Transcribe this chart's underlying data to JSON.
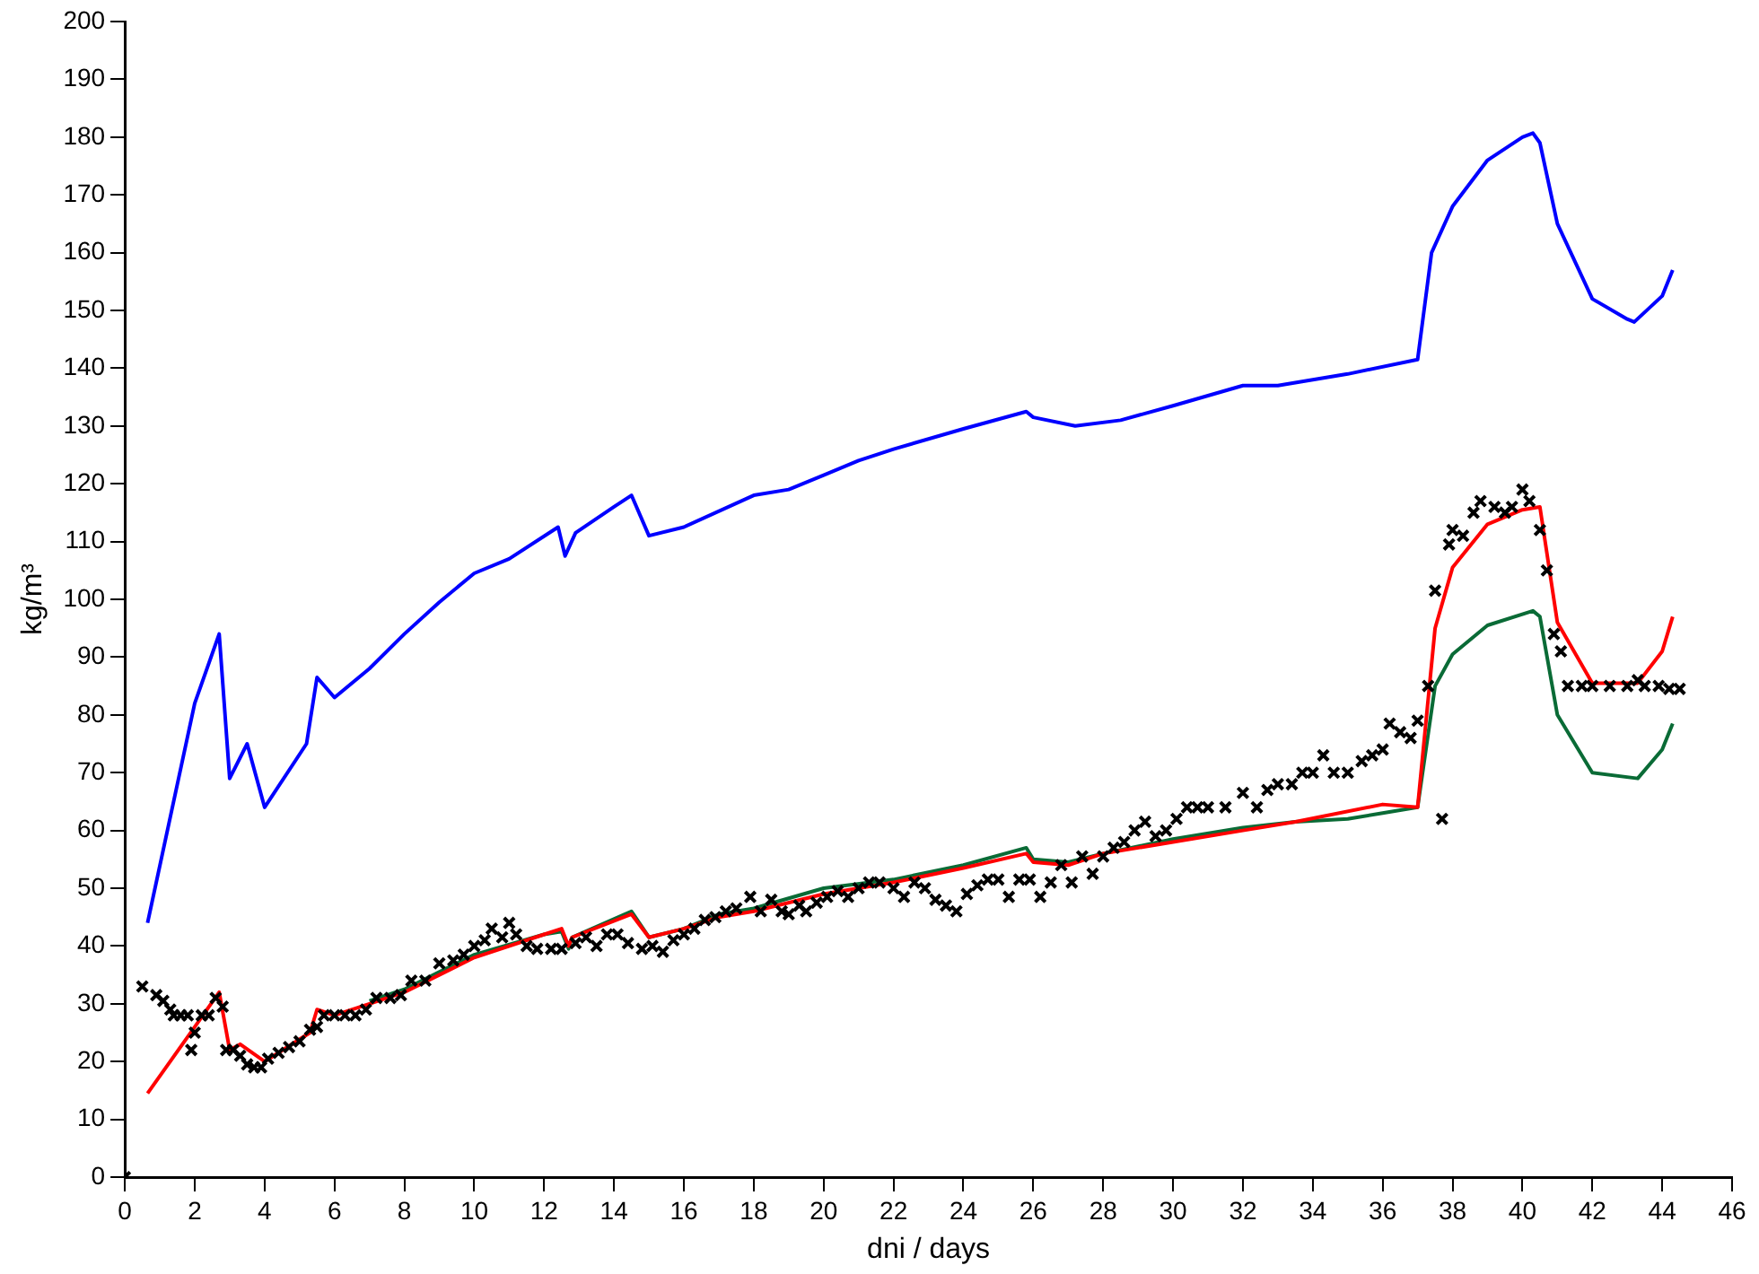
{
  "chart_data": {
    "type": "line",
    "xlabel": "dni / days",
    "ylabel": "kg/m³",
    "xlim": [
      0,
      46
    ],
    "xticks": [
      0,
      2,
      4,
      6,
      8,
      10,
      12,
      14,
      16,
      18,
      20,
      22,
      24,
      26,
      28,
      30,
      32,
      34,
      36,
      38,
      40,
      42,
      44,
      46
    ],
    "ylim": [
      0,
      200
    ],
    "yticks": [
      0,
      10,
      20,
      30,
      40,
      50,
      60,
      70,
      80,
      90,
      100,
      110,
      120,
      130,
      140,
      150,
      160,
      170,
      180,
      190,
      200
    ],
    "grid": false,
    "legend": false,
    "line_style": "solid",
    "series": [
      {
        "marker": "none",
        "color": "#0000ff",
        "x": [
          0.65,
          2.0,
          2.7,
          3.0,
          3.5,
          4.0,
          5.2,
          5.5,
          6.0,
          7.0,
          8.0,
          9.0,
          10.0,
          11.0,
          12.4,
          12.6,
          12.9,
          14.0,
          14.5,
          15.0,
          16.0,
          18.0,
          19.0,
          20.0,
          21.0,
          22.0,
          24.0,
          25.8,
          26.0,
          27.2,
          28.5,
          30.0,
          32.0,
          33.0,
          35.0,
          37.0,
          37.4,
          38.0,
          39.0,
          40.0,
          40.3,
          40.5,
          41.0,
          42.0,
          43.0,
          43.2,
          44.0,
          44.3
        ],
        "values": [
          44,
          82,
          94,
          69,
          75,
          64,
          75,
          86.5,
          83,
          88,
          94,
          99.5,
          104.5,
          107,
          112.5,
          107.5,
          111.5,
          116,
          118,
          111,
          112.5,
          118,
          119,
          121.5,
          124,
          126,
          129.5,
          132.5,
          131.5,
          130,
          131,
          133.5,
          137,
          137,
          139,
          141.5,
          160,
          168,
          176,
          180,
          180.7,
          179,
          165,
          152,
          148.5,
          148,
          152.5,
          157
        ]
      },
      {
        "marker": "none",
        "color": "#0a6b36",
        "x": [
          7.0,
          8.0,
          9.0,
          10.0,
          12.0,
          12.5,
          12.7,
          12.8,
          14.5,
          15.0,
          16.0,
          17.0,
          18.0,
          20.0,
          22.0,
          24.0,
          25.8,
          26.0,
          27.0,
          28.0,
          30.0,
          32.0,
          33.5,
          35.0,
          36.0,
          37.0,
          37.5,
          38.0,
          39.0,
          40.3,
          40.5,
          41.0,
          42.0,
          43.3,
          44.0,
          44.3
        ],
        "values": [
          30.5,
          32.5,
          35.5,
          38.5,
          42,
          42.5,
          39.5,
          41.5,
          46,
          41.5,
          43,
          45.5,
          46.5,
          50,
          51.5,
          54,
          57,
          55,
          54.5,
          56,
          58.5,
          60.5,
          61.5,
          62,
          63,
          64,
          85,
          90.5,
          95.5,
          98,
          97,
          80,
          70,
          69,
          74,
          78.5
        ]
      },
      {
        "marker": "none",
        "color": "#ff0000",
        "x": [
          0.65,
          2.0,
          2.7,
          3.0,
          3.3,
          4.0,
          5.3,
          5.5,
          6.0,
          7.0,
          8.0,
          9.0,
          10.0,
          12.0,
          12.5,
          12.7,
          12.8,
          14.5,
          15.0,
          16.0,
          17.0,
          18.0,
          20.0,
          22.0,
          24.0,
          25.8,
          26.0,
          27.0,
          28.0,
          30.0,
          32.0,
          33.5,
          36.0,
          37.0,
          37.5,
          38.0,
          39.0,
          40.0,
          40.5,
          41.0,
          42.0,
          43.3,
          44.0,
          44.3
        ],
        "values": [
          14.5,
          26,
          32,
          22,
          23,
          20,
          25,
          29,
          28,
          30,
          32,
          35,
          38,
          42,
          43,
          40,
          41.5,
          45.5,
          41.5,
          43,
          45,
          46,
          49,
          51,
          53.5,
          56,
          54.5,
          54,
          56,
          58,
          60,
          61.5,
          64.5,
          64,
          95,
          105.5,
          113,
          115.5,
          116,
          96,
          85.5,
          85.5,
          91,
          97
        ]
      },
      {
        "type": "scatter",
        "marker": "cross",
        "color": "#000000",
        "x": [
          0,
          0.5,
          0.9,
          1.1,
          1.3,
          1.4,
          1.6,
          1.8,
          1.9,
          2.0,
          2.2,
          2.4,
          2.6,
          2.8,
          2.9,
          3.1,
          3.3,
          3.5,
          3.7,
          3.9,
          4.1,
          4.4,
          4.7,
          5.0,
          5.3,
          5.5,
          5.7,
          6.0,
          6.3,
          6.6,
          6.9,
          7.2,
          7.6,
          7.9,
          8.2,
          8.6,
          9.0,
          9.4,
          9.7,
          10.0,
          10.3,
          10.5,
          10.8,
          11.0,
          11.2,
          11.5,
          11.8,
          12.2,
          12.5,
          12.9,
          13.2,
          13.5,
          13.8,
          14.1,
          14.4,
          14.8,
          15.1,
          15.4,
          15.7,
          16.0,
          16.3,
          16.6,
          16.9,
          17.2,
          17.5,
          17.9,
          18.2,
          18.5,
          18.8,
          19.0,
          19.3,
          19.5,
          19.8,
          20.1,
          20.4,
          20.7,
          21.0,
          21.3,
          21.6,
          22.0,
          22.3,
          22.6,
          22.9,
          23.2,
          23.5,
          23.8,
          24.1,
          24.4,
          24.7,
          25.0,
          25.3,
          25.6,
          25.9,
          26.2,
          26.5,
          26.8,
          27.1,
          27.4,
          27.7,
          28.0,
          28.3,
          28.6,
          28.9,
          29.2,
          29.5,
          29.8,
          30.1,
          30.4,
          30.7,
          31.0,
          31.5,
          32.0,
          32.4,
          32.7,
          33.0,
          33.4,
          33.7,
          34.0,
          34.3,
          34.6,
          35.0,
          35.4,
          35.7,
          36.0,
          36.2,
          36.5,
          36.8,
          37.0,
          37.3,
          37.5,
          37.7,
          37.9,
          38.0,
          38.3,
          38.6,
          38.8,
          39.2,
          39.5,
          39.7,
          40.0,
          40.2,
          40.5,
          40.7,
          40.9,
          41.1,
          41.3,
          41.7,
          42.0,
          42.5,
          43.0,
          43.3,
          43.5,
          43.9,
          44.2,
          44.5
        ],
        "values": [
          0,
          33,
          31.5,
          30.5,
          29,
          28,
          28,
          28,
          22,
          25,
          28,
          28,
          31,
          29.5,
          22,
          22,
          21,
          19.5,
          19,
          19,
          20.5,
          21.5,
          22.5,
          23.5,
          25.5,
          26,
          28,
          28,
          28,
          28,
          29,
          31,
          31,
          31.5,
          34,
          34,
          37,
          37.5,
          38.5,
          40,
          41,
          43,
          41.5,
          44,
          42,
          40,
          39.5,
          39.5,
          39.5,
          40.5,
          41.5,
          40,
          42,
          42,
          40.5,
          39.5,
          40,
          39,
          41,
          42,
          43,
          44.5,
          45,
          46,
          46.5,
          48.5,
          46,
          48,
          46,
          45.5,
          47,
          46,
          47.5,
          48.5,
          49.5,
          48.5,
          50,
          51,
          51,
          50,
          48.5,
          51,
          50,
          48,
          47,
          46,
          49,
          50.5,
          51.5,
          51.5,
          48.5,
          51.5,
          51.5,
          48.5,
          51,
          54,
          51,
          55.5,
          52.5,
          55.5,
          57,
          58,
          60,
          61.5,
          59,
          60,
          62,
          64,
          64,
          64,
          64,
          66.5,
          64,
          67,
          68,
          68,
          70,
          70,
          73,
          70,
          70,
          72,
          73,
          74,
          78.5,
          77,
          76,
          79,
          85,
          101.5,
          62,
          109.5,
          112,
          111,
          115,
          117,
          116,
          115,
          116,
          119,
          117,
          112,
          105,
          94,
          91,
          85,
          85,
          85,
          85,
          85,
          86,
          85,
          85,
          84.5,
          84.5
        ]
      }
    ]
  }
}
